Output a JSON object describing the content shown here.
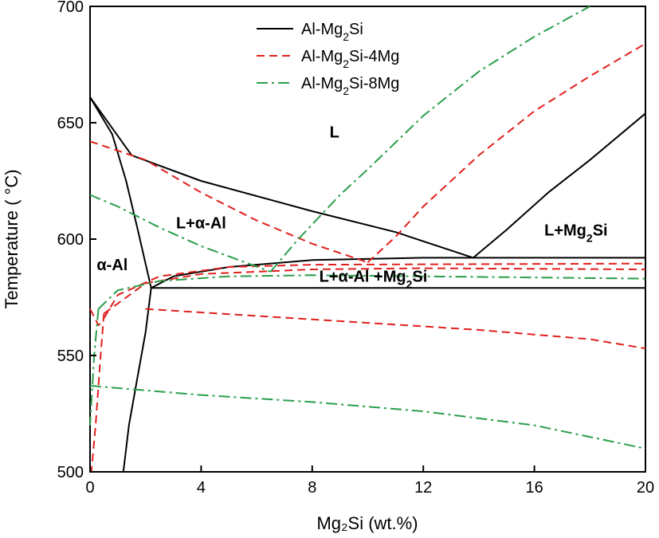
{
  "chart_data": {
    "type": "line",
    "title": "",
    "xlabel": "Mg₂Si (wt.%)",
    "ylabel": "Temperature ( °C)",
    "xlim": [
      0,
      20
    ],
    "ylim": [
      500,
      700
    ],
    "xticks": [
      "0",
      "4",
      "8",
      "12",
      "16",
      "20"
    ],
    "yticks": [
      "500",
      "550",
      "600",
      "650",
      "700"
    ],
    "grid": false,
    "legend_position": "top-center",
    "series": [
      {
        "name": "Al-Mg₂Si",
        "style": "solid",
        "color": "#000000",
        "curves": [
          {
            "role": "liquidus-Al-side",
            "points": [
              [
                0,
                661
              ],
              [
                1.5,
                636
              ],
              [
                4,
                625
              ],
              [
                8,
                612
              ],
              [
                11,
                603
              ],
              [
                13.8,
                592
              ]
            ]
          },
          {
            "role": "liquidus-Mg2Si-side",
            "points": [
              [
                13.8,
                592
              ],
              [
                15,
                604
              ],
              [
                16.5,
                620
              ],
              [
                18,
                634
              ],
              [
                20,
                654
              ]
            ]
          },
          {
            "role": "solidus-Al",
            "points": [
              [
                0,
                661
              ],
              [
                0.8,
                645
              ],
              [
                1.3,
                625
              ],
              [
                1.7,
                605
              ],
              [
                2.2,
                579
              ]
            ]
          },
          {
            "role": "solvus",
            "points": [
              [
                2.2,
                579
              ],
              [
                2.0,
                560
              ],
              [
                1.7,
                540
              ],
              [
                1.4,
                520
              ],
              [
                1.2,
                500
              ]
            ]
          },
          {
            "role": "eutectic-isotherm",
            "points": [
              [
                2.2,
                579
              ],
              [
                20,
                579
              ]
            ]
          },
          {
            "role": "three-phase-boundary",
            "points": [
              [
                2.2,
                579
              ],
              [
                3,
                584
              ],
              [
                5,
                588
              ],
              [
                8,
                591
              ],
              [
                12,
                592
              ],
              [
                20,
                592
              ]
            ]
          }
        ]
      },
      {
        "name": "Al-Mg₂Si-4Mg",
        "style": "dashed",
        "color": "#e0201d",
        "curves": [
          {
            "role": "liquidus-Al-side",
            "points": [
              [
                0,
                642
              ],
              [
                2,
                634
              ],
              [
                4,
                620
              ],
              [
                6,
                608
              ],
              [
                8,
                598
              ],
              [
                10,
                590
              ]
            ]
          },
          {
            "role": "liquidus-Mg2Si-side",
            "points": [
              [
                10,
                590
              ],
              [
                11,
                601
              ],
              [
                12,
                614
              ],
              [
                14,
                636
              ],
              [
                16,
                655
              ],
              [
                18,
                670
              ],
              [
                20,
                684
              ]
            ]
          },
          {
            "role": "solidus-Al",
            "points": [
              [
                0,
                570
              ],
              [
                0.3,
                563
              ],
              [
                0.5,
                565
              ]
            ]
          },
          {
            "role": "solvus",
            "points": [
              [
                0.5,
                568
              ],
              [
                0.35,
                545
              ],
              [
                0.2,
                520
              ],
              [
                0.05,
                500
              ]
            ]
          },
          {
            "role": "three-phase-lower",
            "points": [
              [
                0.5,
                568
              ],
              [
                2,
                581
              ],
              [
                4,
                585
              ],
              [
                8,
                587
              ],
              [
                12,
                587.5
              ],
              [
                20,
                587
              ]
            ]
          },
          {
            "role": "three-phase-upper",
            "points": [
              [
                0.5,
                566
              ],
              [
                1,
                576
              ],
              [
                2.5,
                584
              ],
              [
                5,
                588
              ],
              [
                8,
                589
              ],
              [
                20,
                589.5
              ]
            ]
          },
          {
            "role": "solidus-eutectic",
            "points": [
              [
                2,
                570
              ],
              [
                6,
                567
              ],
              [
                10,
                564
              ],
              [
                14,
                561
              ],
              [
                18,
                557
              ],
              [
                20,
                553
              ]
            ]
          }
        ]
      },
      {
        "name": "Al-Mg₂Si-8Mg",
        "style": "dash-dot",
        "color": "#2a9e4b",
        "curves": [
          {
            "role": "liquidus-Al-side",
            "points": [
              [
                0,
                619
              ],
              [
                1,
                614
              ],
              [
                2.5,
                605
              ],
              [
                4,
                597
              ],
              [
                6.5,
                586
              ]
            ]
          },
          {
            "role": "liquidus-Mg2Si-side",
            "points": [
              [
                6.5,
                586
              ],
              [
                7.5,
                600
              ],
              [
                9,
                619
              ],
              [
                10,
                630
              ],
              [
                12,
                653
              ],
              [
                14,
                672
              ],
              [
                16,
                687
              ],
              [
                18,
                700
              ]
            ]
          },
          {
            "role": "solvus",
            "points": [
              [
                0.3,
                570
              ],
              [
                0.15,
                550
              ],
              [
                0.05,
                530
              ],
              [
                0,
                520
              ]
            ]
          },
          {
            "role": "three-phase",
            "points": [
              [
                0.3,
                570
              ],
              [
                1,
                578
              ],
              [
                2.5,
                582
              ],
              [
                5,
                584
              ],
              [
                8,
                584.5
              ],
              [
                20,
                583
              ]
            ]
          },
          {
            "role": "solidus-eutectic",
            "points": [
              [
                0,
                537
              ],
              [
                4,
                533
              ],
              [
                8,
                530
              ],
              [
                12,
                526
              ],
              [
                16,
                520
              ],
              [
                20,
                510
              ]
            ]
          }
        ]
      }
    ],
    "annotations": [
      {
        "text": "L",
        "x": 8.8,
        "y": 646
      },
      {
        "text": "L+α-Al",
        "x": 4,
        "y": 607
      },
      {
        "text": "α-Al",
        "x": 0.8,
        "y": 589
      },
      {
        "text": "L+Mg₂Si",
        "x": 17.5,
        "y": 604
      },
      {
        "text": "L+α-Al +Mg₂Si",
        "x": 10.2,
        "y": 584
      }
    ]
  }
}
